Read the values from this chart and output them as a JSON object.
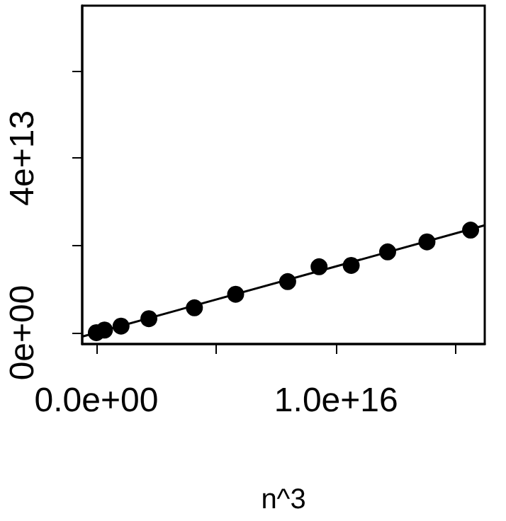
{
  "chart_data": {
    "type": "scatter",
    "xlabel": "n^3",
    "xlim": [
      -590000000000000.0,
      1.62e+16
    ],
    "ylim": [
      -2600000000000.0,
      74900000000000.0
    ],
    "xticks": [
      {
        "value": 0,
        "label": "0.0e+00"
      },
      {
        "value": 5000000000000000.0,
        "label": null
      },
      {
        "value": 1e+16,
        "label": "1.0e+16"
      },
      {
        "value": 1.5e+16,
        "label": null
      }
    ],
    "yticks": [
      {
        "value": 0,
        "label": "0e+00"
      },
      {
        "value": 20000000000000.0,
        "label": null
      },
      {
        "value": 40000000000000.0,
        "label": "4e+13"
      },
      {
        "value": 60000000000000.0,
        "label": null
      }
    ],
    "grid": false,
    "marker": "circle",
    "series": [
      {
        "color": "#000000",
        "x": [
          0,
          340000000000000.0,
          1030000000000000.0,
          2190000000000000.0,
          4090000000000000.0,
          5810000000000000.0,
          7980000000000000.0,
          9290000000000000.0,
          1.063e+16,
          1.215e+16,
          1.379e+16,
          1.561e+16
        ],
        "values": [
          0,
          600000000000.0,
          1500000000000.0,
          3200000000000.0,
          5700000000000.0,
          8800000000000.0,
          11700000000000.0,
          15100000000000.0,
          15400000000000.0,
          18500000000000.0,
          20800000000000.0,
          23500000000000.0
        ]
      },
      {
        "type": "line",
        "color": "#000000",
        "marker": "none",
        "line_style": "solid",
        "x": [
          -590000000000000.0,
          1.62e+16
        ],
        "values": [
          -900000000000.0,
          24600000000000.0
        ]
      }
    ]
  }
}
